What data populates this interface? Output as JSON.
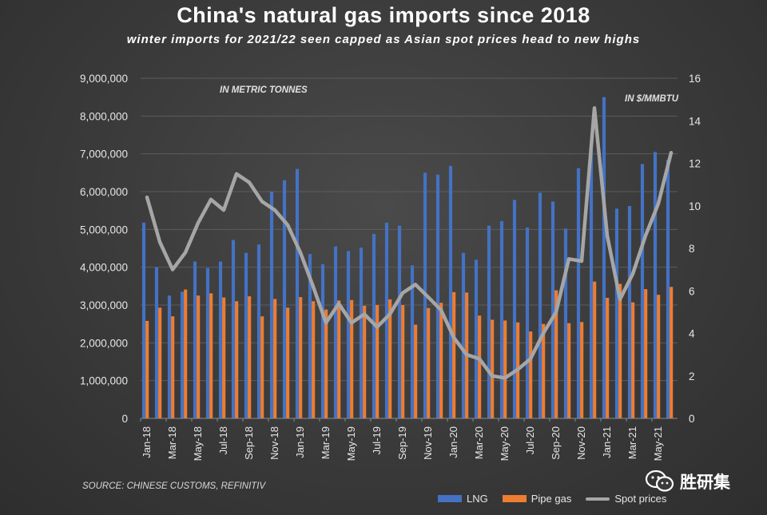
{
  "chart_data": {
    "type": "bar",
    "title": "China's natural gas imports since 2018",
    "subtitle": "winter imports for 2021/22 seen capped as Asian spot prices head to new highs",
    "left_axis_note": "IN METRIC TONNES",
    "right_axis_note": "IN $/MMBTU",
    "source": "SOURCE: CHINESE CUSTOMS, REFINITIV",
    "categories": [
      "Jan-18",
      "Feb-18",
      "Mar-18",
      "Apr-18",
      "May-18",
      "Jun-18",
      "Jul-18",
      "Aug-18",
      "Sep-18",
      "Oct-18",
      "Nov-18",
      "Dec-18",
      "Jan-19",
      "Feb-19",
      "Mar-19",
      "Apr-19",
      "May-19",
      "Jun-19",
      "Jul-19",
      "Aug-19",
      "Sep-19",
      "Oct-19",
      "Nov-19",
      "Dec-19",
      "Jan-20",
      "Feb-20",
      "Mar-20",
      "Apr-20",
      "May-20",
      "Jun-20",
      "Jul-20",
      "Aug-20",
      "Sep-20",
      "Oct-20",
      "Nov-20",
      "Dec-20",
      "Jan-21",
      "Feb-21",
      "Mar-21",
      "Apr-21",
      "May-21",
      "Jun-21"
    ],
    "x_tick_labels": [
      "Jan-18",
      "Mar-18",
      "May-18",
      "Jul-18",
      "Sep-18",
      "Nov-18",
      "Jan-19",
      "Mar-19",
      "May-19",
      "Jul-19",
      "Sep-19",
      "Nov-19",
      "Jan-20",
      "Mar-20",
      "May-20",
      "Jul-20",
      "Sep-20",
      "Nov-20",
      "Jan-21",
      "Mar-21",
      "May-21"
    ],
    "y_left": {
      "min": 0,
      "max": 9000000,
      "ticks": [
        "0",
        "1,000,000",
        "2,000,000",
        "3,000,000",
        "4,000,000",
        "5,000,000",
        "6,000,000",
        "7,000,000",
        "8,000,000",
        "9,000,000"
      ]
    },
    "y_right": {
      "min": 0,
      "max": 16,
      "ticks": [
        "0",
        "2",
        "4",
        "6",
        "8",
        "10",
        "12",
        "14",
        "16"
      ]
    },
    "series": [
      {
        "name": "LNG",
        "kind": "bar",
        "axis": "left",
        "color": "#4472c4",
        "values": [
          5180000,
          4000000,
          3250000,
          3350000,
          4150000,
          3980000,
          4150000,
          4720000,
          4380000,
          4600000,
          6000000,
          6300000,
          6600000,
          4350000,
          4080000,
          4550000,
          4430000,
          4520000,
          4880000,
          5180000,
          5100000,
          4050000,
          6500000,
          6450000,
          6680000,
          4380000,
          4200000,
          5100000,
          5220000,
          5780000,
          5050000,
          5970000,
          5740000,
          5020000,
          6620000,
          7080000,
          8500000,
          5550000,
          5620000,
          6730000,
          7050000,
          6840000
        ]
      },
      {
        "name": "Pipe gas",
        "kind": "bar",
        "axis": "left",
        "color": "#ed7d31",
        "values": [
          2580000,
          2930000,
          2700000,
          3410000,
          3250000,
          3310000,
          3200000,
          3100000,
          3230000,
          2700000,
          3160000,
          2930000,
          3210000,
          3100000,
          2880000,
          3120000,
          3130000,
          2980000,
          3000000,
          3150000,
          3000000,
          2480000,
          2920000,
          3060000,
          3340000,
          3330000,
          2720000,
          2610000,
          2590000,
          2540000,
          2300000,
          2500000,
          3390000,
          2520000,
          2550000,
          3620000,
          3190000,
          3560000,
          3070000,
          3420000,
          3270000,
          3480000
        ]
      },
      {
        "name": "Spot prices",
        "kind": "line",
        "axis": "right",
        "color": "#a6a6a6",
        "values": [
          10.4,
          8.3,
          7.0,
          7.8,
          9.2,
          10.3,
          9.8,
          11.5,
          11.1,
          10.2,
          9.8,
          9.1,
          7.8,
          6.2,
          4.5,
          5.4,
          4.5,
          4.9,
          4.3,
          4.9,
          5.9,
          6.3,
          5.7,
          5.1,
          3.8,
          3.0,
          2.8,
          2.0,
          1.9,
          2.3,
          2.8,
          4.0,
          5.0,
          7.5,
          7.4,
          14.6,
          8.6,
          5.6,
          6.8,
          8.6,
          10.1,
          12.5
        ]
      }
    ],
    "legend": [
      {
        "label": "LNG",
        "color": "#4472c4",
        "kind": "bar"
      },
      {
        "label": "Pipe gas",
        "color": "#ed7d31",
        "kind": "bar"
      },
      {
        "label": "Spot prices",
        "color": "#a6a6a6",
        "kind": "line"
      }
    ]
  },
  "watermark": {
    "text": "胜研集",
    "icon": "wechat-icon"
  }
}
